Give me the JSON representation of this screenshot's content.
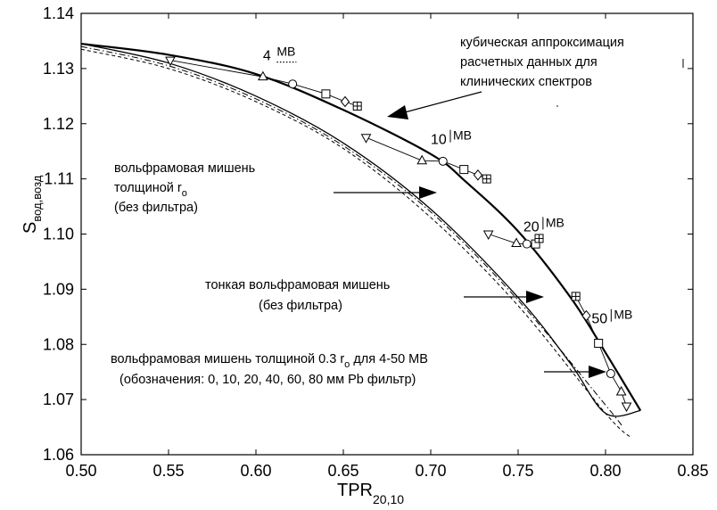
{
  "chart_data": {
    "type": "line",
    "xlabel": "TPR",
    "xlabel_sub": "20,10",
    "ylabel": "S",
    "ylabel_sub": "вод,возд",
    "xlim": [
      0.5,
      0.85
    ],
    "ylim": [
      1.06,
      1.14
    ],
    "xticks": [
      "0.50",
      "0.55",
      "0.60",
      "0.65",
      "0.70",
      "0.75",
      "0.80",
      "0.85"
    ],
    "yticks": [
      "1.06",
      "1.07",
      "1.08",
      "1.09",
      "1.10",
      "1.11",
      "1.12",
      "1.13",
      "1.14"
    ],
    "grid": false,
    "series": [
      {
        "style": "thick-solid",
        "x": [
          0.5,
          0.55,
          0.6,
          0.65,
          0.7,
          0.72,
          0.75,
          0.78,
          0.8,
          0.82
        ],
        "y": [
          1.1345,
          1.1325,
          1.129,
          1.1225,
          1.1145,
          1.1095,
          1.1005,
          1.0885,
          1.0785,
          1.068
        ]
      },
      {
        "style": "thin-solid",
        "x": [
          0.5,
          0.55,
          0.6,
          0.65,
          0.7,
          0.75,
          0.78,
          0.8,
          0.82
        ],
        "y": [
          1.1345,
          1.131,
          1.125,
          1.1165,
          1.1045,
          1.0885,
          1.0765,
          1.0675,
          1.068
        ]
      },
      {
        "style": "dash-dot",
        "x": [
          0.5,
          0.55,
          0.6,
          0.65,
          0.7,
          0.75,
          0.8,
          0.81
        ],
        "y": [
          1.134,
          1.1305,
          1.1245,
          1.116,
          1.104,
          1.088,
          1.069,
          1.065
        ]
      },
      {
        "style": "dashed",
        "x": [
          0.5,
          0.55,
          0.6,
          0.65,
          0.7,
          0.75,
          0.8,
          0.815
        ],
        "y": [
          1.1335,
          1.13,
          1.124,
          1.1155,
          1.103,
          1.087,
          1.0675,
          1.063
        ]
      },
      {
        "name": "4 MB",
        "style": "thin-markers",
        "x": [
          0.551,
          0.604,
          0.621,
          0.64,
          0.651,
          0.658
        ],
        "y": [
          1.1315,
          1.1285,
          1.1272,
          1.1254,
          1.124,
          1.1232
        ],
        "markers": [
          "triangle-down",
          "triangle-up",
          "circle",
          "square",
          "diamond",
          "square-plus"
        ]
      },
      {
        "name": "10 MB",
        "style": "thin-markers",
        "x": [
          0.663,
          0.695,
          0.707,
          0.719,
          0.727,
          0.732
        ],
        "y": [
          1.1175,
          1.1133,
          1.1132,
          1.1117,
          1.1107,
          1.11
        ],
        "markers": [
          "triangle-down",
          "triangle-up",
          "circle",
          "square",
          "diamond",
          "square-plus"
        ]
      },
      {
        "name": "20 MB",
        "style": "thin-markers",
        "x": [
          0.733,
          0.749,
          0.755,
          0.76,
          0.762
        ],
        "y": [
          1.1,
          1.0983,
          1.0982,
          1.0982,
          1.0992
        ],
        "markers": [
          "triangle-down",
          "triangle-up",
          "circle",
          "square",
          "square-plus"
        ]
      },
      {
        "name": "50 MB",
        "style": "thin-markers",
        "x": [
          0.783,
          0.789,
          0.796,
          0.803,
          0.809,
          0.812
        ],
        "y": [
          1.0887,
          1.0852,
          1.0802,
          1.0747,
          1.0714,
          1.0688
        ],
        "markers": [
          "square-plus",
          "diamond",
          "square",
          "circle",
          "triangle-up",
          "triangle-down"
        ]
      }
    ],
    "energy_labels": [
      {
        "num": "4",
        "unit": "MB",
        "x": 0.604,
        "y": 1.1315,
        "dots": true
      },
      {
        "num": "10",
        "unit": "MB",
        "x": 0.7,
        "y": 1.1163,
        "bar": true
      },
      {
        "num": "20",
        "unit": "MB",
        "x": 0.753,
        "y": 1.1005,
        "bar": true
      },
      {
        "num": "50",
        "unit": "MB",
        "x": 0.792,
        "y": 1.0838,
        "bar": true
      }
    ],
    "annotations": [
      {
        "lines": [
          "кубическая аппроксимация",
          "расчетных данных для",
          "клинических спектров"
        ]
      },
      {
        "lines": [
          "вольфрамовая мишень",
          "толщиной r",
          "(без фильтра)"
        ],
        "sub_line": 1,
        "sub": "o"
      },
      {
        "lines": [
          "тонкая вольфрамовая мишень",
          "(без фильтра)"
        ]
      },
      {
        "lines": [
          "вольфрамовая мишень толщиной 0.3 r",
          " для 4-50 MB",
          "(обозначения: 0, 10, 20, 40, 60, 80 мм  Pb фильтр)"
        ],
        "sub": "o"
      }
    ]
  }
}
